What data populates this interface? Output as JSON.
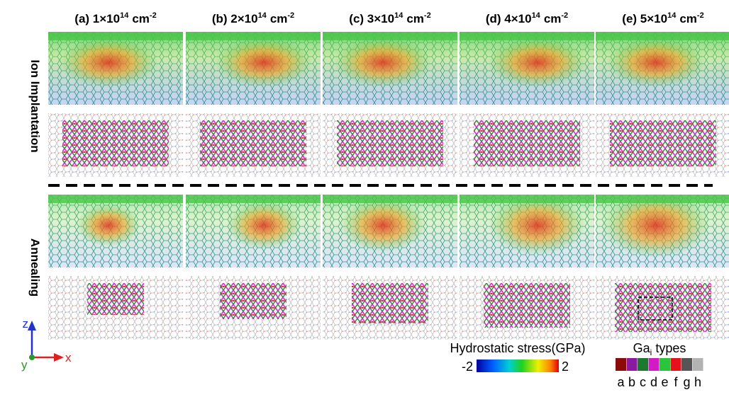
{
  "columns": [
    {
      "prefix": "(a) 1×10",
      "exp": "14",
      "unit": "cm",
      "unit_exp": "-2"
    },
    {
      "prefix": "(b) 2×10",
      "exp": "14",
      "unit": "cm",
      "unit_exp": "-2"
    },
    {
      "prefix": "(c) 3×10",
      "exp": "14",
      "unit": "cm",
      "unit_exp": "-2"
    },
    {
      "prefix": "(d) 4×10",
      "exp": "14",
      "unit": "cm",
      "unit_exp": "-2"
    },
    {
      "prefix": "(e) 5×10",
      "exp": "14",
      "unit": "cm",
      "unit_exp": "-2"
    }
  ],
  "rows": [
    "Ion Implantation",
    "Annealing"
  ],
  "axes": {
    "z": "z",
    "x": "x",
    "y": "y"
  },
  "colorbar": {
    "title": "Hydrostatic stress(GPa)",
    "min": -2,
    "max": 2
  },
  "gai_legend": {
    "base": "Ga",
    "sub": "i",
    "suffix": "types",
    "types": [
      {
        "label": "a",
        "color": "#8b0a0a"
      },
      {
        "label": "b",
        "color": "#8a1aa0"
      },
      {
        "label": "c",
        "color": "#1b7a2c"
      },
      {
        "label": "d",
        "color": "#d21bc6"
      },
      {
        "label": "e",
        "color": "#2cc43c"
      },
      {
        "label": "f",
        "color": "#e5121c"
      },
      {
        "label": "g",
        "color": "#555555"
      },
      {
        "label": "h",
        "color": "#b3b3b3"
      }
    ]
  }
}
